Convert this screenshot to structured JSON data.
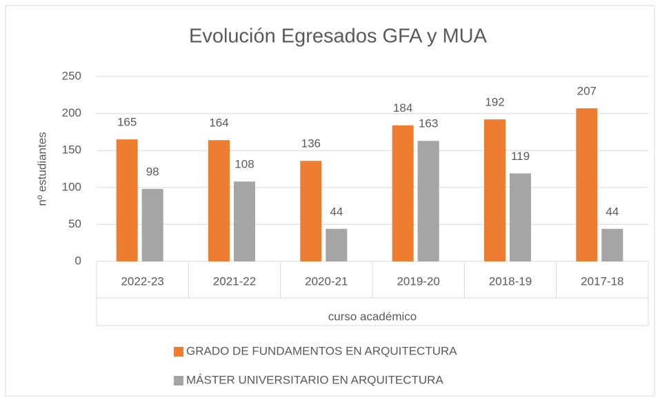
{
  "chart_data": {
    "type": "bar",
    "title": "Evolución Egresados GFA y MUA",
    "y_label": "nº estudiantes",
    "x_label": "curso académico",
    "categories": [
      "2022-23",
      "2021-22",
      "2020-21",
      "2019-20",
      "2018-19",
      "2017-18"
    ],
    "series": [
      {
        "name": "GRADO DE FUNDAMENTOS EN ARQUITECTURA",
        "color": "#ed7d31",
        "values": [
          165,
          164,
          136,
          184,
          192,
          207
        ]
      },
      {
        "name": "MÁSTER UNIVERSITARIO EN ARQUITECTURA",
        "color": "#a5a5a5",
        "values": [
          98,
          108,
          44,
          163,
          119,
          44
        ]
      }
    ],
    "ylim": [
      0,
      250
    ],
    "yticks": [
      0,
      50,
      100,
      150,
      200,
      250
    ],
    "grid": true,
    "legend": "bottom"
  }
}
